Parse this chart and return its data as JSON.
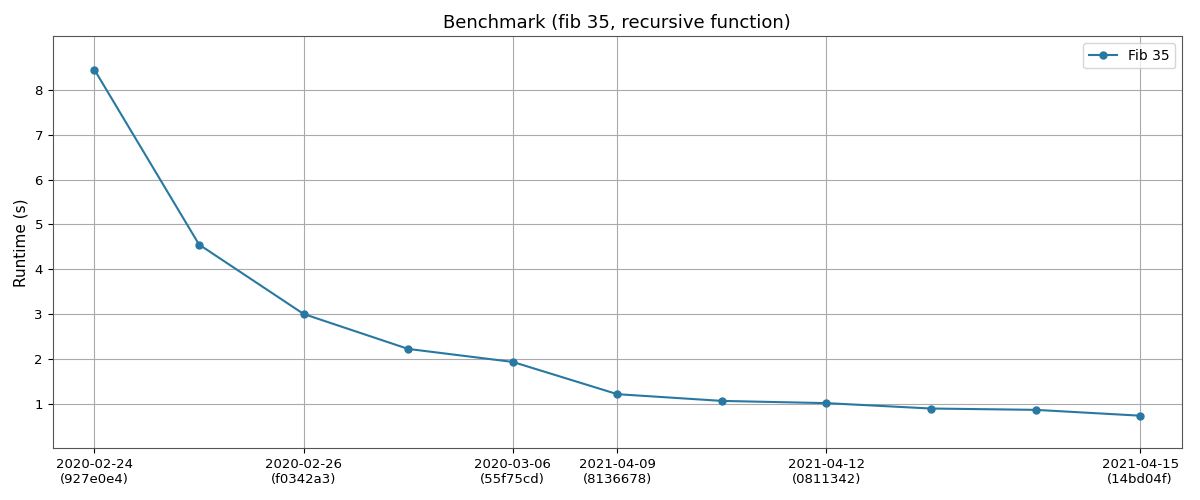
{
  "title": "Benchmark (fib 35, recursive function)",
  "ylabel": "Runtime (s)",
  "legend_label": "Fib 35",
  "x_labels": [
    "2020-02-24\n(927e0e4)",
    "2020-02-26\n(f0342a3)",
    "2020-03-06\n(55f75cd)",
    "2021-04-09\n(8136678)",
    "2021-04-12\n(0811342)",
    "2021-04-15\n(14bd04f)"
  ],
  "y_values": [
    8.45,
    4.55,
    3.0,
    2.22,
    1.93,
    1.21,
    1.06,
    1.01,
    0.89,
    0.86,
    0.73
  ],
  "x_positions": [
    0,
    1,
    2,
    3,
    4,
    5,
    6,
    7,
    8,
    9,
    10
  ],
  "x_tick_positions": [
    0,
    2,
    4,
    5,
    7,
    10
  ],
  "line_color": "#2878a2",
  "marker": "o",
  "marker_size": 5,
  "ylim": [
    0,
    9.2
  ],
  "yticks": [
    1,
    2,
    3,
    4,
    5,
    6,
    7,
    8
  ],
  "grid_color": "#aaaaaa",
  "plot_bg_color": "#ffffff",
  "fig_bg_color": "#ffffff",
  "title_fontsize": 13,
  "label_fontsize": 11,
  "tick_fontsize": 9.5
}
